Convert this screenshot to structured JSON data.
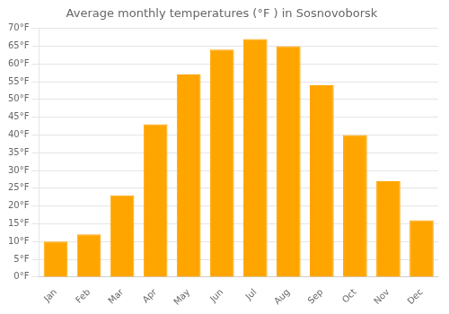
{
  "chart_data": {
    "type": "bar",
    "title": "Average monthly temperatures (°F ) in Sosnovoborsk",
    "categories": [
      "Jan",
      "Feb",
      "Mar",
      "Apr",
      "May",
      "Jun",
      "Jul",
      "Aug",
      "Sep",
      "Oct",
      "Nov",
      "Dec"
    ],
    "values": [
      10,
      12,
      23,
      43,
      57,
      64,
      67,
      65,
      54,
      40,
      27,
      16
    ],
    "color": "#FFA500",
    "ylim": [
      0,
      70
    ],
    "yticks": [
      {
        "value": 0,
        "label": "0°F"
      },
      {
        "value": 5,
        "label": "5°F"
      },
      {
        "value": 10,
        "label": "10°F"
      },
      {
        "value": 15,
        "label": "15°F"
      },
      {
        "value": 20,
        "label": "20°F"
      },
      {
        "value": 25,
        "label": "25°F"
      },
      {
        "value": 30,
        "label": "30°F"
      },
      {
        "value": 35,
        "label": "35°F"
      },
      {
        "value": 40,
        "label": "40°F"
      },
      {
        "value": 45,
        "label": "45°F"
      },
      {
        "value": 50,
        "label": "50°F"
      },
      {
        "value": 55,
        "label": "55°F"
      },
      {
        "value": 60,
        "label": "60°F"
      },
      {
        "value": 65,
        "label": "65°F"
      },
      {
        "value": 70,
        "label": "70°F"
      }
    ],
    "grid": true
  }
}
